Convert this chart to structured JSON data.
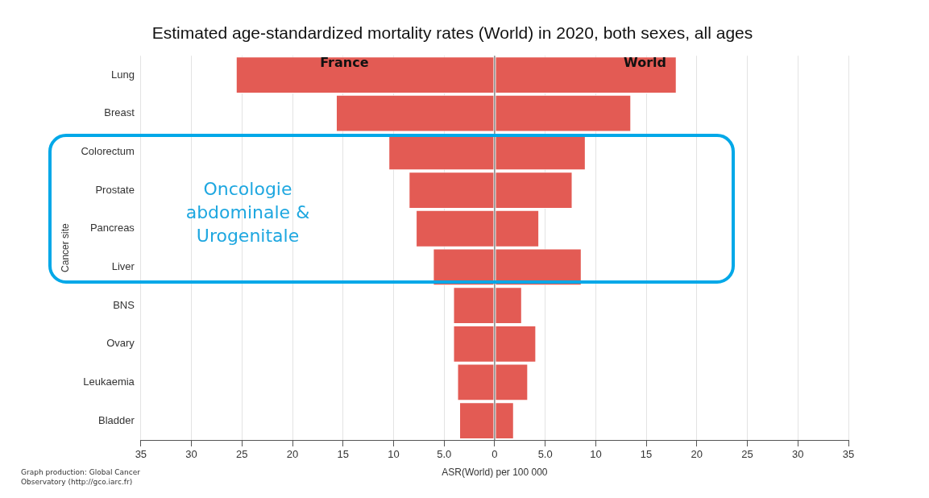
{
  "chart_data": {
    "type": "bar",
    "orientation": "horizontal",
    "title": "Estimated age-standardized mortality rates (World) in 2020, both sexes, all ages",
    "xlabel": "ASR(World) per 100 000",
    "ylabel": "Cancer site",
    "categories": [
      "Lung",
      "Breast",
      "Colorectum",
      "Prostate",
      "Pancreas",
      "Liver",
      "BNS",
      "Ovary",
      "Leukaemia",
      "Bladder"
    ],
    "series": [
      {
        "name": "France",
        "color": "#e35b54",
        "values": [
          -25.6,
          -15.7,
          -10.5,
          -8.5,
          -7.8,
          -6.1,
          -4.1,
          -4.1,
          -3.7,
          -3.5
        ]
      },
      {
        "name": "World",
        "color": "#e35b54",
        "values": [
          18.0,
          13.5,
          9.0,
          7.7,
          4.4,
          8.6,
          2.7,
          4.1,
          3.3,
          1.9
        ]
      }
    ],
    "xlim": [
      -35,
      35
    ],
    "xticks": [
      {
        "value": -35,
        "label": "35"
      },
      {
        "value": -30,
        "label": "30"
      },
      {
        "value": -25,
        "label": "25"
      },
      {
        "value": -20,
        "label": "20"
      },
      {
        "value": -15,
        "label": "15"
      },
      {
        "value": -10,
        "label": "10"
      },
      {
        "value": -5,
        "label": "5.0"
      },
      0,
      {
        "value": 5,
        "label": "5.0"
      },
      10,
      15,
      20,
      25,
      30,
      35
    ],
    "grid": "x",
    "legend": false,
    "stacked": true,
    "annotations": [
      "Oncologie abdominale & Urogenitale",
      "Graph production: Global Cancer Observatory (http://gco.iarc.fr)"
    ]
  }
}
